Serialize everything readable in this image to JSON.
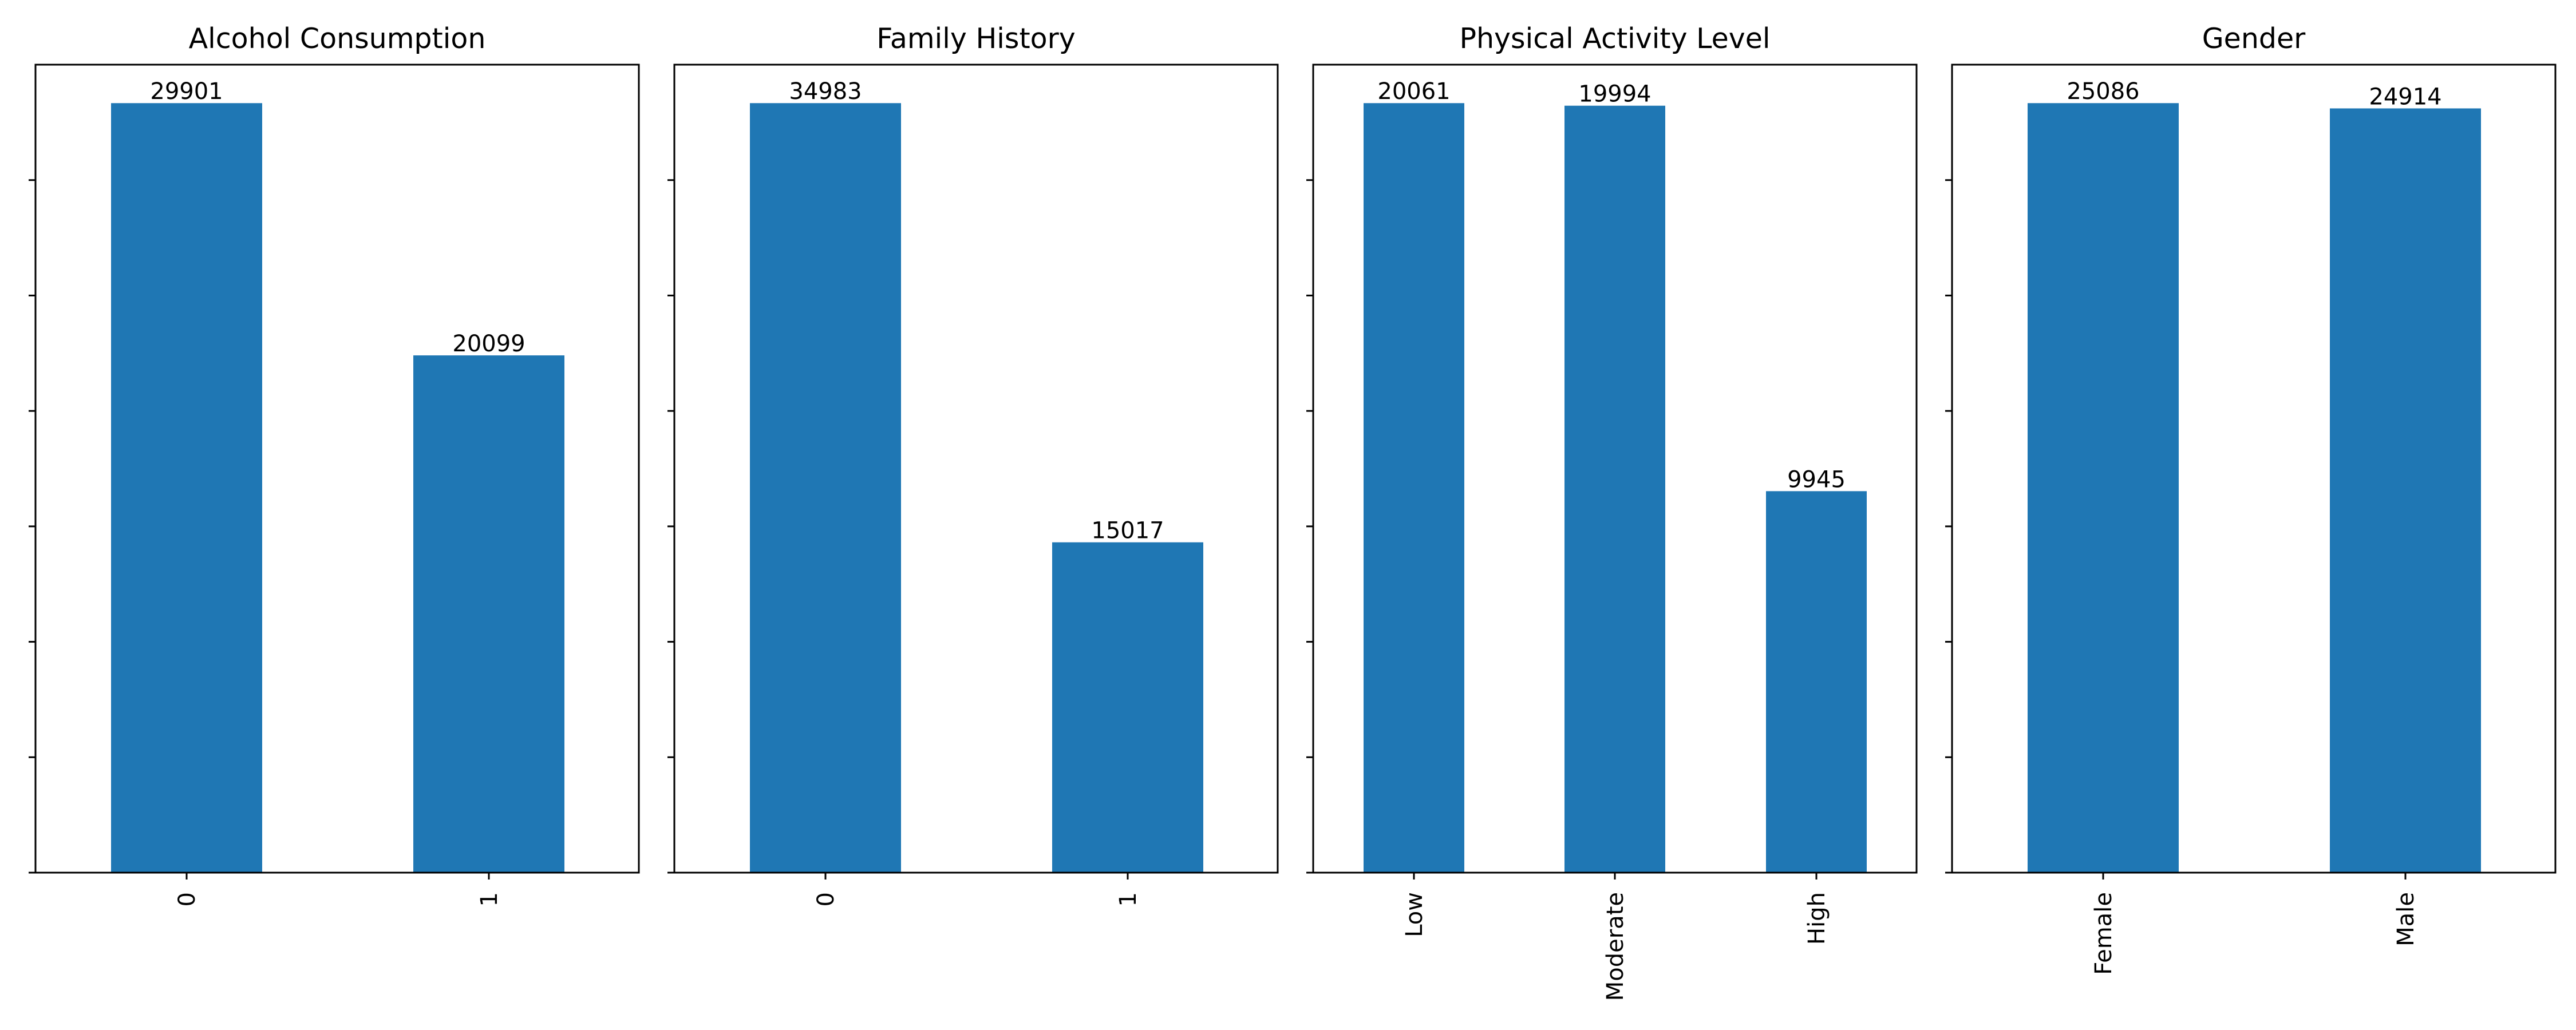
{
  "chart_data": [
    {
      "type": "bar",
      "title": "Alcohol Consumption",
      "categories": [
        "0",
        "1"
      ],
      "values": [
        29901,
        20099
      ],
      "ylim": [
        0,
        31396
      ],
      "color": "#1f77b4",
      "grid": false
    },
    {
      "type": "bar",
      "title": "Family History",
      "categories": [
        "0",
        "1"
      ],
      "values": [
        34983,
        15017
      ],
      "ylim": [
        0,
        36732
      ],
      "color": "#1f77b4",
      "grid": false
    },
    {
      "type": "bar",
      "title": "Physical Activity Level",
      "categories": [
        "Low",
        "Moderate",
        "High"
      ],
      "values": [
        20061,
        19994,
        9945
      ],
      "ylim": [
        0,
        21064
      ],
      "color": "#1f77b4",
      "grid": false
    },
    {
      "type": "bar",
      "title": "Gender",
      "categories": [
        "Female",
        "Male"
      ],
      "values": [
        25086,
        24914
      ],
      "ylim": [
        0,
        26340
      ],
      "color": "#1f77b4",
      "grid": false
    }
  ]
}
